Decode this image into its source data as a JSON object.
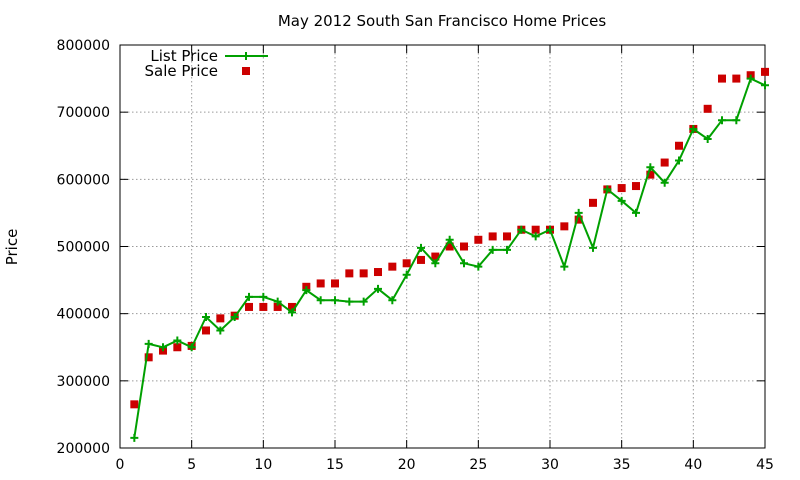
{
  "chart_data": {
    "type": "line",
    "title": "May 2012 South San Francisco Home Prices",
    "xlabel": "",
    "ylabel": "Price",
    "xlim": [
      0,
      45
    ],
    "ylim": [
      200000,
      800000
    ],
    "xticks": [
      0,
      5,
      10,
      15,
      20,
      25,
      30,
      35,
      40,
      45
    ],
    "yticks": [
      200000,
      300000,
      400000,
      500000,
      600000,
      700000,
      800000
    ],
    "grid": true,
    "legend_position": "top-left",
    "x": [
      1,
      2,
      3,
      4,
      5,
      6,
      7,
      8,
      9,
      10,
      11,
      12,
      13,
      14,
      15,
      16,
      17,
      18,
      19,
      20,
      21,
      22,
      23,
      24,
      25,
      26,
      27,
      28,
      29,
      30,
      31,
      32,
      33,
      34,
      35,
      36,
      37,
      38,
      39,
      40,
      41,
      42,
      43,
      44,
      45
    ],
    "series": [
      {
        "name": "List Price",
        "style": "linespoints",
        "color": "#00a000",
        "marker": "plus",
        "values": [
          215000,
          355000,
          350000,
          360000,
          350000,
          395000,
          375000,
          395000,
          425000,
          425000,
          418000,
          402000,
          435000,
          420000,
          420000,
          418000,
          418000,
          437000,
          420000,
          458000,
          498000,
          475000,
          510000,
          475000,
          470000,
          495000,
          495000,
          525000,
          515000,
          525000,
          470000,
          550000,
          498000,
          585000,
          568000,
          550000,
          618000,
          595000,
          628000,
          675000,
          660000,
          688000,
          688000,
          750000,
          740000
        ]
      },
      {
        "name": "Sale Price",
        "style": "points",
        "color": "#cc0000",
        "marker": "square",
        "values": [
          265000,
          335000,
          345000,
          350000,
          352000,
          375000,
          393000,
          397000,
          410000,
          410000,
          410000,
          410000,
          440000,
          445000,
          445000,
          460000,
          460000,
          462000,
          470000,
          475000,
          480000,
          485000,
          500000,
          500000,
          510000,
          515000,
          515000,
          525000,
          525000,
          525000,
          530000,
          540000,
          565000,
          585000,
          587000,
          590000,
          607000,
          625000,
          650000,
          675000,
          705000,
          750000,
          750000,
          755000,
          760000
        ]
      }
    ]
  }
}
